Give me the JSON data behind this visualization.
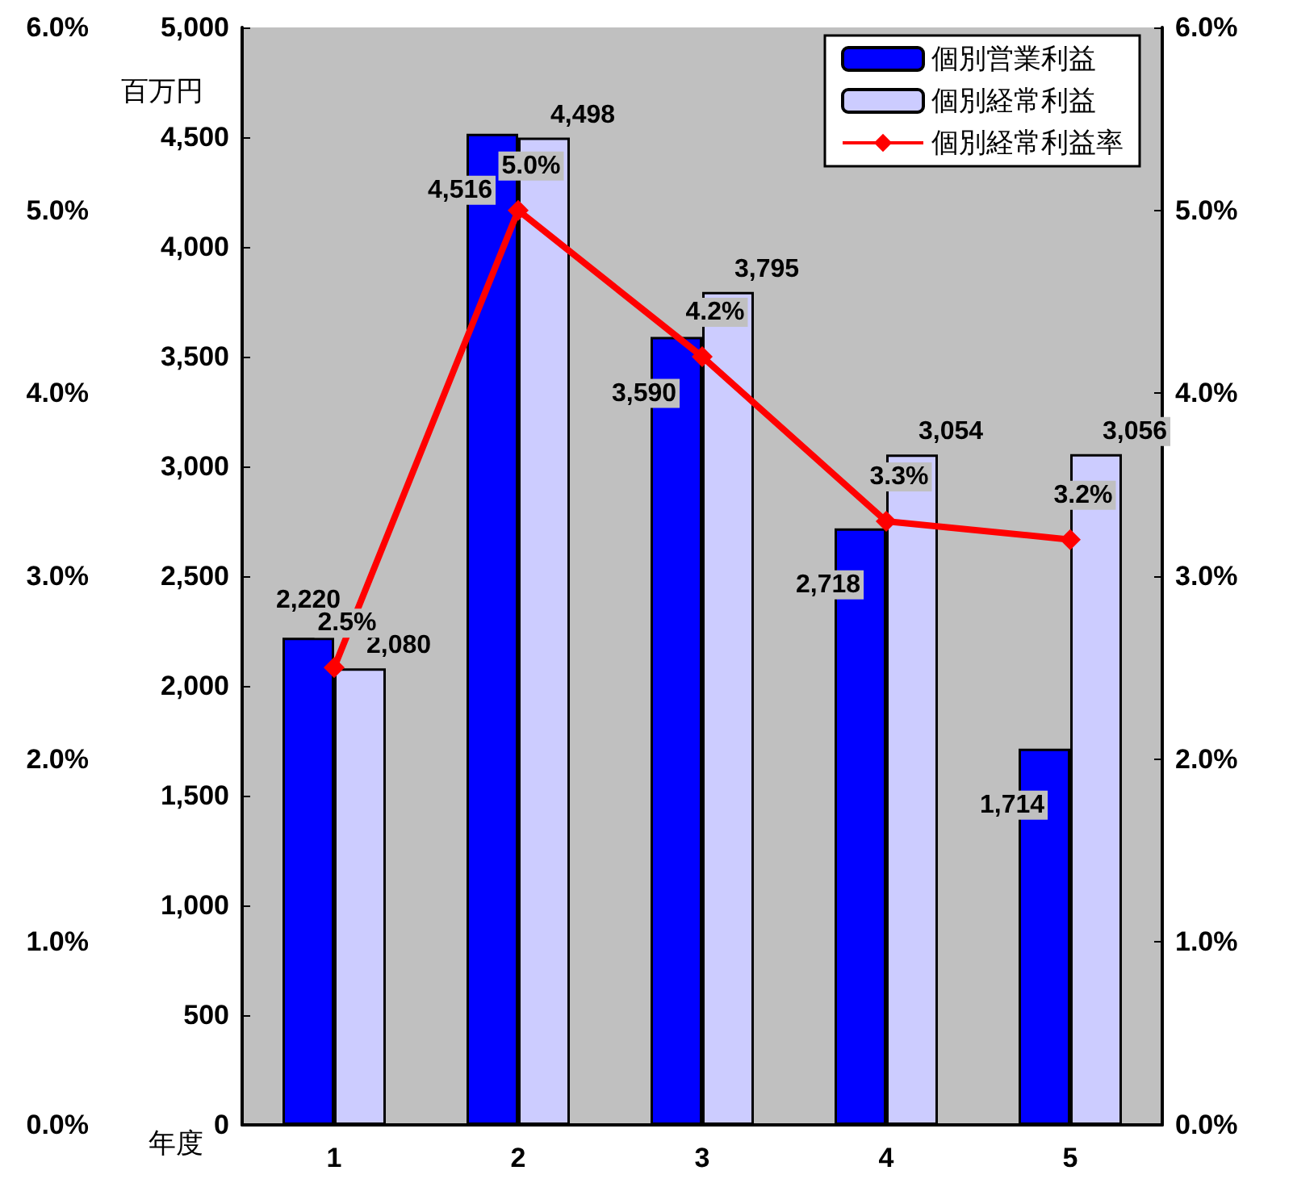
{
  "chart_data": {
    "type": "bar",
    "xlabel": "年度",
    "ylabel": "百万円",
    "categories": [
      "1",
      "2",
      "3",
      "4",
      "5"
    ],
    "series": [
      {
        "name": "個別営業利益",
        "color": "#0000ff",
        "values": [
          2220,
          4516,
          3590,
          2718,
          1714
        ],
        "value_labels": [
          "2,220",
          "4,516",
          "3,590",
          "2,718",
          "1,714"
        ]
      },
      {
        "name": "個別経常利益",
        "color": "#ccccff",
        "values": [
          2080,
          4498,
          3795,
          3054,
          3056
        ],
        "value_labels": [
          "2,080",
          "4,498",
          "3,795",
          "3,054",
          "3,056"
        ]
      },
      {
        "name": "個別経常利益率",
        "type": "line",
        "axis": "y2",
        "color": "#ff0000",
        "values": [
          2.5,
          5.0,
          4.2,
          3.3,
          3.2
        ],
        "value_labels": [
          "2.5%",
          "5.0%",
          "4.2%",
          "3.3%",
          "3.2%"
        ]
      }
    ],
    "ylim": [
      0,
      5000
    ],
    "yticks": [
      {
        "value": 0,
        "label": "0"
      },
      {
        "value": 500,
        "label": "500"
      },
      {
        "value": 1000,
        "label": "1,000"
      },
      {
        "value": 1500,
        "label": "1,500"
      },
      {
        "value": 2000,
        "label": "2,000"
      },
      {
        "value": 2500,
        "label": "2,500"
      },
      {
        "value": 3000,
        "label": "3,000"
      },
      {
        "value": 3500,
        "label": "3,500"
      },
      {
        "value": 4000,
        "label": "4,000"
      },
      {
        "value": 4500,
        "label": "4,500"
      },
      {
        "value": 5000,
        "label": "5,000"
      }
    ],
    "y2lim": [
      0,
      6
    ],
    "y2ticks": [
      {
        "value": 0,
        "label": "0.0%"
      },
      {
        "value": 1,
        "label": "1.0%"
      },
      {
        "value": 2,
        "label": "2.0%"
      },
      {
        "value": 3,
        "label": "3.0%"
      },
      {
        "value": 4,
        "label": "4.0%"
      },
      {
        "value": 5,
        "label": "5.0%"
      },
      {
        "value": 6,
        "label": "6.0%"
      }
    ],
    "y3lim": [
      0,
      6
    ],
    "y3ticks": [
      {
        "value": 0,
        "label": "0.0%"
      },
      {
        "value": 1,
        "label": "1.0%"
      },
      {
        "value": 2,
        "label": "2.0%"
      },
      {
        "value": 3,
        "label": "3.0%"
      },
      {
        "value": 4,
        "label": "4.0%"
      },
      {
        "value": 5,
        "label": "5.0%"
      },
      {
        "value": 6,
        "label": "6.0%"
      }
    ],
    "grid": false,
    "legend": "top right",
    "marker": "diamond",
    "line_style": "solid"
  }
}
